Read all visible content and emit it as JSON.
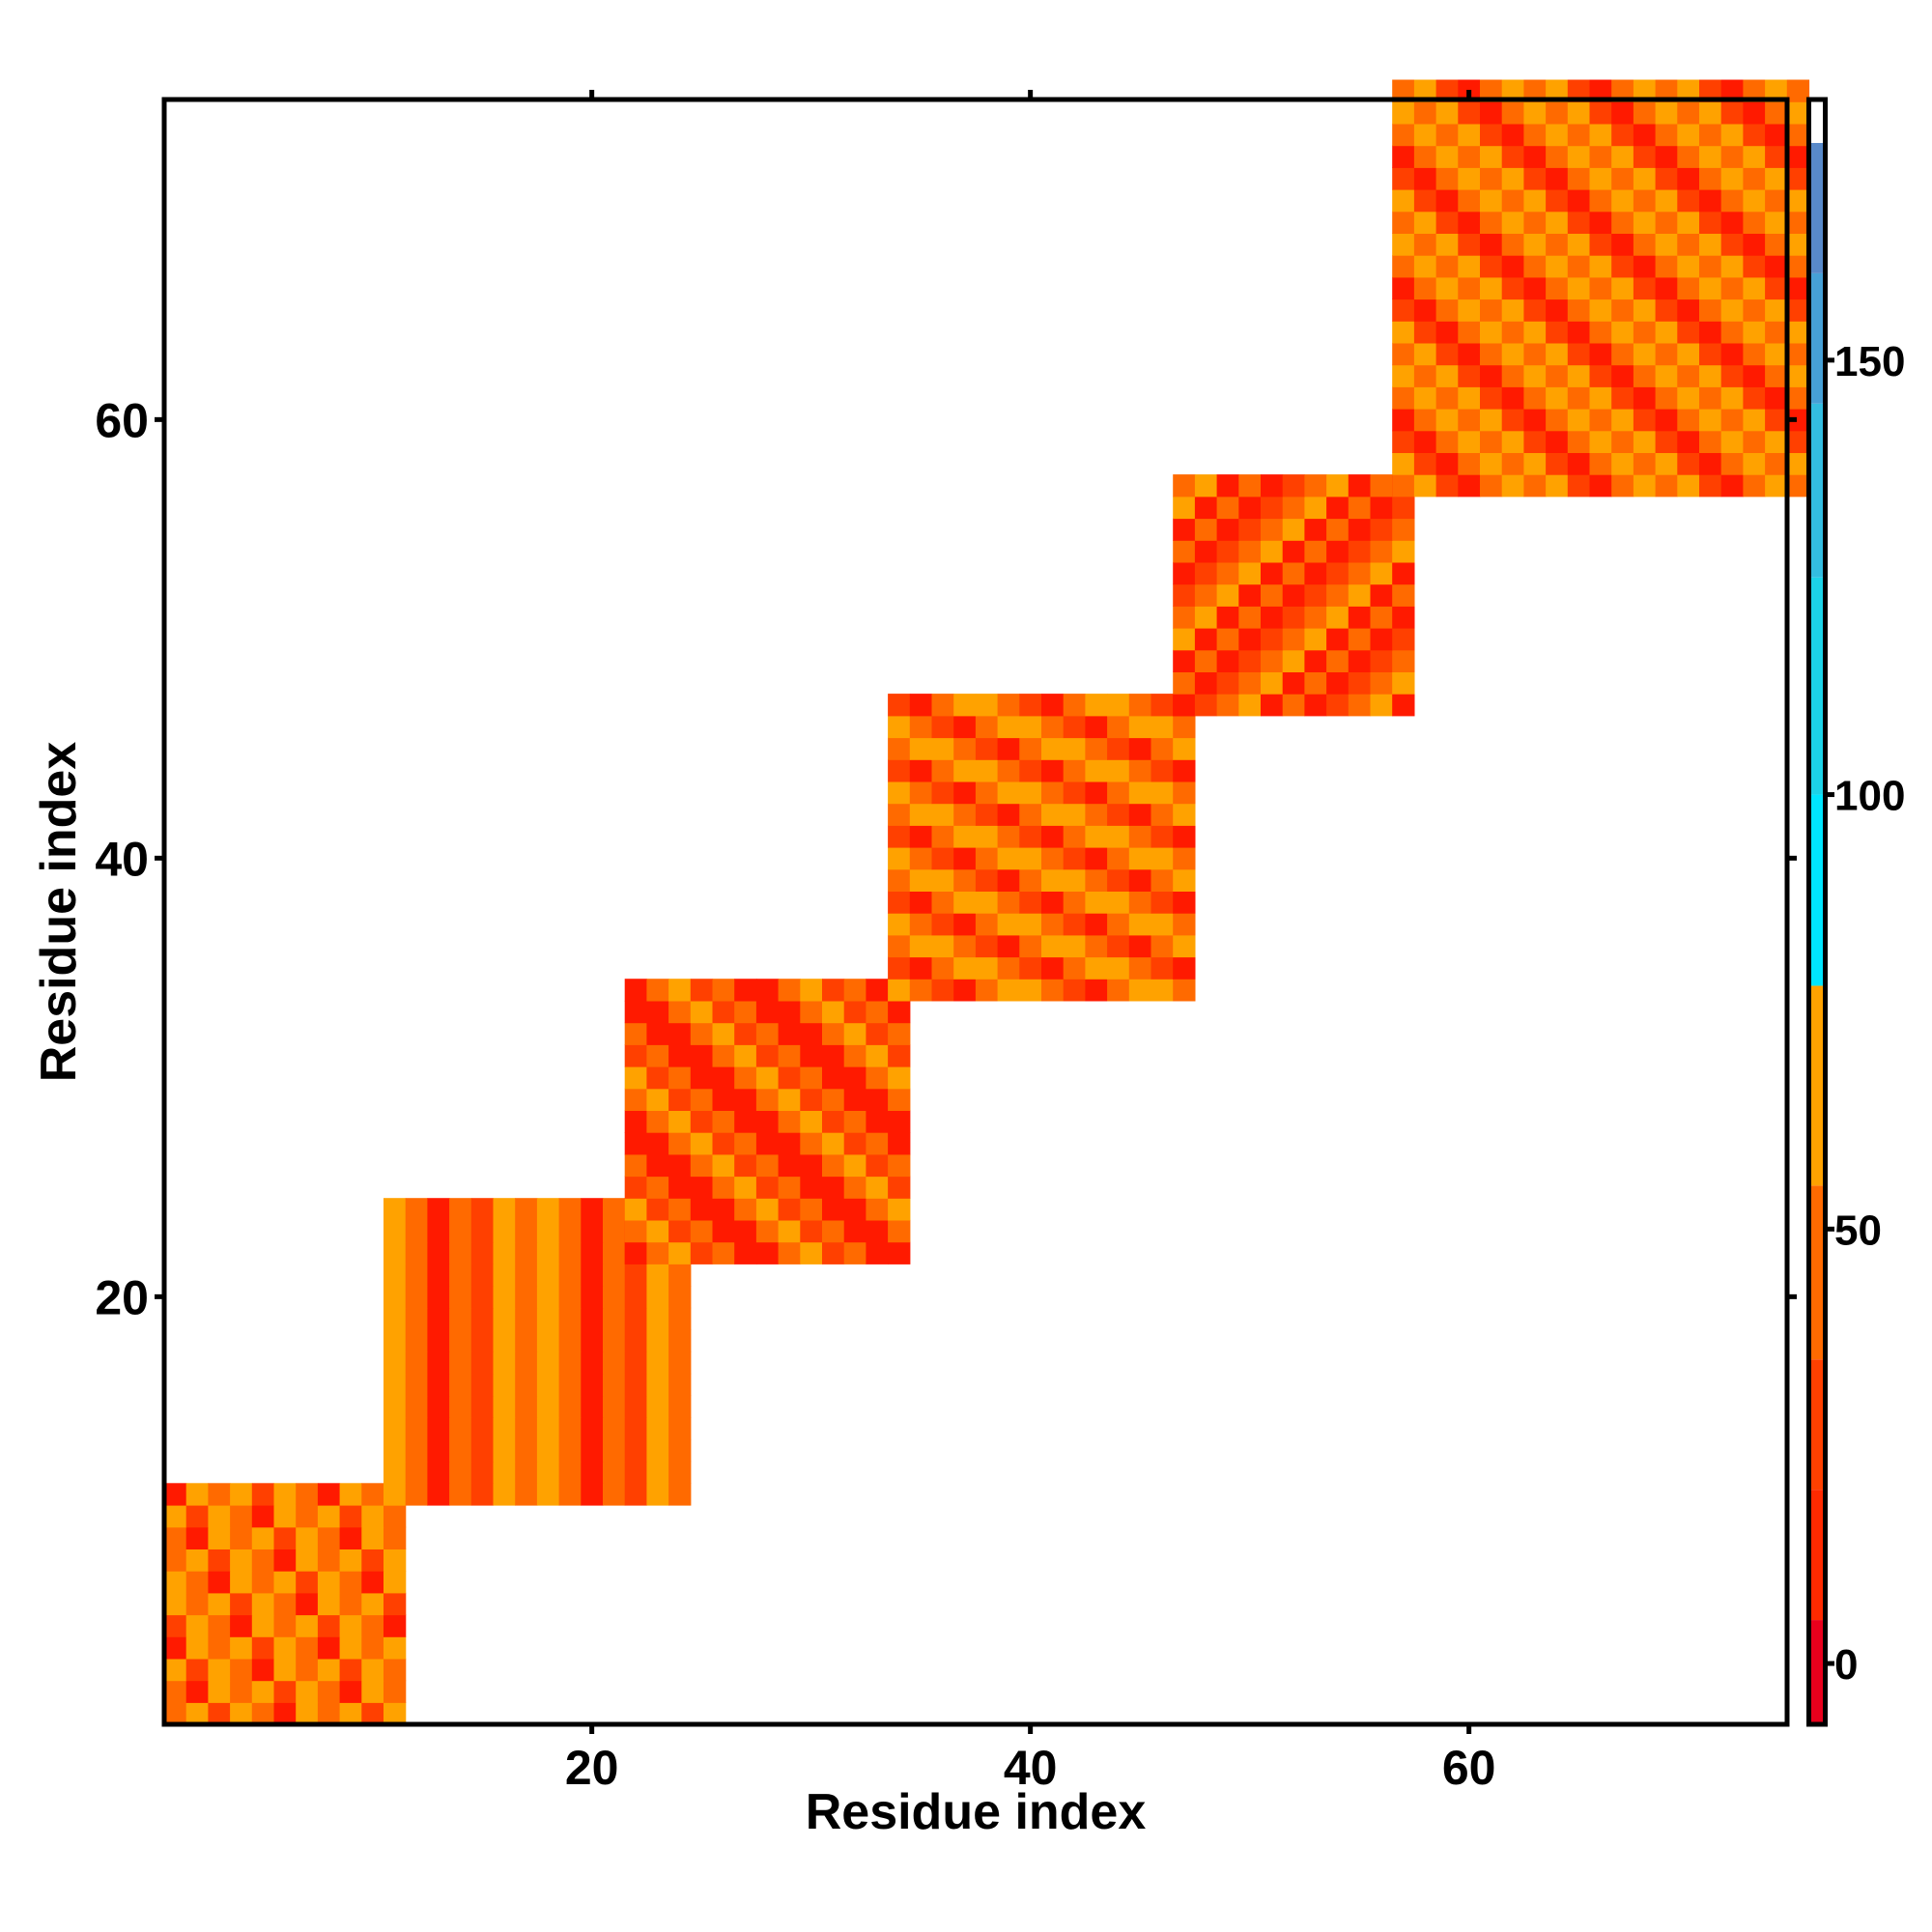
{
  "chart_data": {
    "type": "heatmap",
    "title": "",
    "xlabel": "Residue index",
    "ylabel": "Residue index",
    "xlim": [
      1,
      75
    ],
    "ylim": [
      1,
      75
    ],
    "x_ticks": [
      20,
      40,
      60
    ],
    "y_ticks": [
      20,
      40,
      60
    ],
    "colorbar": {
      "ticks": [
        0,
        50,
        100,
        150
      ],
      "range": [
        -7,
        180
      ],
      "bands": [
        {
          "from": -7,
          "to": 5,
          "color": "#e8001c"
        },
        {
          "from": 5,
          "to": 20,
          "color": "#ff2a00"
        },
        {
          "from": 20,
          "to": 35,
          "color": "#ff4000"
        },
        {
          "from": 35,
          "to": 55,
          "color": "#ff6a00"
        },
        {
          "from": 55,
          "to": 78,
          "color": "#ffa200"
        },
        {
          "from": 78,
          "to": 100,
          "color": "#00e5ff"
        },
        {
          "from": 100,
          "to": 125,
          "color": "#1cd3e8"
        },
        {
          "from": 125,
          "to": 145,
          "color": "#33bde0"
        },
        {
          "from": 145,
          "to": 160,
          "color": "#46a0d6"
        },
        {
          "from": 160,
          "to": 175,
          "color": "#5889c9"
        },
        {
          "from": 175,
          "to": 180,
          "color": "#ffffff"
        }
      ]
    },
    "palette": {
      "R": "#ff1a00",
      "r": "#ff4000",
      "O": "#ff6a00",
      "o": "#ffa200",
      "C": "#00e5ff",
      "c": "#1cd3e8",
      "b": "#3fb2de",
      "B": "#5889c9"
    },
    "regions": [
      {
        "x": [
          1,
          11
        ],
        "y": [
          1,
          11
        ],
        "cells": "O o r o O R o"
      },
      {
        "x": [
          11,
          24
        ],
        "y": [
          11,
          24
        ],
        "cells": "o O R O r o O"
      },
      {
        "x": [
          22,
          34
        ],
        "y": [
          22,
          34
        ],
        "cells": "R O o r O R"
      },
      {
        "x": [
          34,
          47
        ],
        "y": [
          34,
          47
        ],
        "cells": "o O r R O o"
      },
      {
        "x": [
          47,
          57
        ],
        "y": [
          47,
          57
        ],
        "cells": "R r O o R O"
      },
      {
        "x": [
          57,
          75
        ],
        "y": [
          57,
          75
        ],
        "cells": "O o r R O o"
      }
    ]
  }
}
